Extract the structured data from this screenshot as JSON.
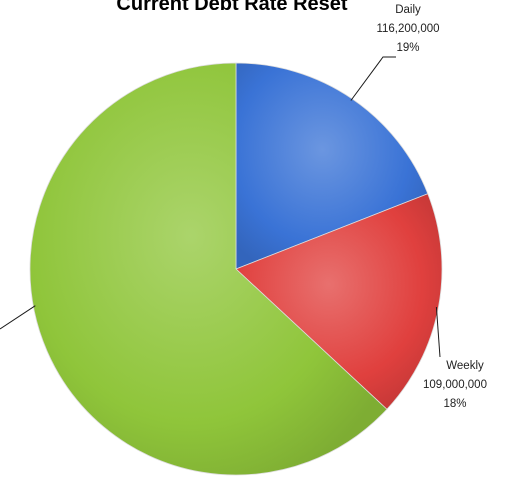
{
  "chart_data": {
    "type": "pie",
    "title": "Current Debt Rate Reset",
    "start_angle_deg": 0,
    "direction": "clockwise",
    "slices": [
      {
        "label": "Daily",
        "value": 116200000,
        "value_text": "116,200,000",
        "percent_text": "19%",
        "color": "#3a73d6"
      },
      {
        "label": "Weekly",
        "value": 109000000,
        "value_text": "109,000,000",
        "percent_text": "18%",
        "color": "#e0403e"
      },
      {
        "label": "",
        "value": 384800000,
        "value_text": "",
        "percent_text": "",
        "color": "#8fc53a"
      }
    ]
  }
}
